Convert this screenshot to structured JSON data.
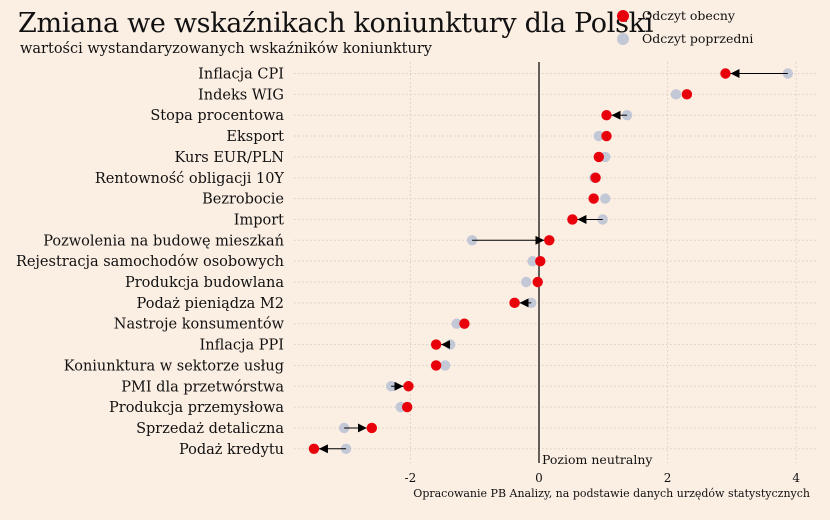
{
  "chart_data": {
    "type": "dot",
    "title": "Zmiana we wskaźnikach koniunktury dla Polski",
    "subtitle": "wartości wystandaryzowanych wskaźników koniunktury",
    "source": "Opracowanie PB Analizy, na podstawie danych urzędów statystycznych",
    "legend": [
      {
        "label": "Odczyt obecny",
        "color": "#e8000b"
      },
      {
        "label": "Odczyt poprzedni",
        "color": "#c3c8d6"
      }
    ],
    "legend_position": "top-right",
    "annotation": "Poziom neutralny",
    "x_ticks": [
      -2,
      0,
      2,
      4
    ],
    "xlim": [
      -3.55,
      4.1
    ],
    "grid": true,
    "categories": [
      "Inflacja CPI",
      "Indeks WIG",
      "Stopa procentowa",
      "Eksport",
      "Kurs EUR/PLN",
      "Rentowność obligacji 10Y",
      "Bezrobocie",
      "Import",
      "Pozwolenia na budowę mieszkań",
      "Rejestracja samochodów osobowych",
      "Produkcja budowlana",
      "Podaż pieniądza M2",
      "Nastroje konsumentów",
      "Inflacja PPI",
      "Koniunktura w sektorze usług",
      "PMI dla przetwórstwa",
      "Produkcja przemysłowa",
      "Sprzedaż detaliczna",
      "Podaż kredytu"
    ],
    "series": [
      {
        "name": "Odczyt obecny",
        "color": "#e8000b",
        "values": [
          2.9,
          2.3,
          1.05,
          1.05,
          0.93,
          0.88,
          0.85,
          0.52,
          0.16,
          0.02,
          -0.02,
          -0.38,
          -1.16,
          -1.6,
          -1.6,
          -2.03,
          -2.05,
          -2.6,
          -3.5
        ]
      },
      {
        "name": "Odczyt poprzedni",
        "color": "#c3c8d6",
        "values": [
          3.87,
          2.13,
          1.37,
          0.93,
          1.03,
          0.86,
          1.03,
          0.99,
          -1.04,
          -0.1,
          -0.2,
          -0.12,
          -1.28,
          -1.38,
          -1.46,
          -2.3,
          -2.15,
          -3.03,
          -3.0
        ]
      }
    ]
  }
}
